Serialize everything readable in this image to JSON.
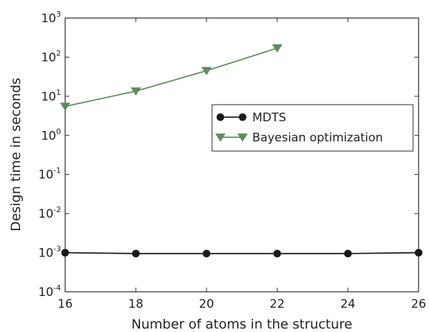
{
  "chart_data": {
    "type": "line",
    "title": "",
    "xlabel": "Number of atoms in the structure",
    "ylabel": "Design time in seconds",
    "xlim": [
      16,
      26
    ],
    "ylim": [
      0.0001,
      1000
    ],
    "yscale": "log",
    "grid": false,
    "legend_position": "center-right",
    "x_ticks": [
      16,
      18,
      20,
      22,
      24,
      26
    ],
    "y_ticks": [
      {
        "value": 0.0001,
        "base": "10",
        "exp": "-4"
      },
      {
        "value": 0.001,
        "base": "10",
        "exp": "-3"
      },
      {
        "value": 0.01,
        "base": "10",
        "exp": "-2"
      },
      {
        "value": 0.1,
        "base": "10",
        "exp": "-1"
      },
      {
        "value": 1,
        "base": "10",
        "exp": "0"
      },
      {
        "value": 10,
        "base": "10",
        "exp": "1"
      },
      {
        "value": 100,
        "base": "10",
        "exp": "2"
      },
      {
        "value": 1000,
        "base": "10",
        "exp": "3"
      }
    ],
    "series": [
      {
        "name": "MDTS",
        "color": "#1a1a1a",
        "marker": "circle",
        "x": [
          16,
          18,
          20,
          22,
          24,
          26
        ],
        "y": [
          0.001,
          0.00095,
          0.00095,
          0.00095,
          0.00095,
          0.001
        ]
      },
      {
        "name": "Bayesian optimization",
        "color": "#5f8a5f",
        "marker": "triangle-down",
        "x": [
          16,
          18,
          20,
          22
        ],
        "y": [
          5.5,
          13.5,
          45,
          170
        ]
      }
    ]
  }
}
